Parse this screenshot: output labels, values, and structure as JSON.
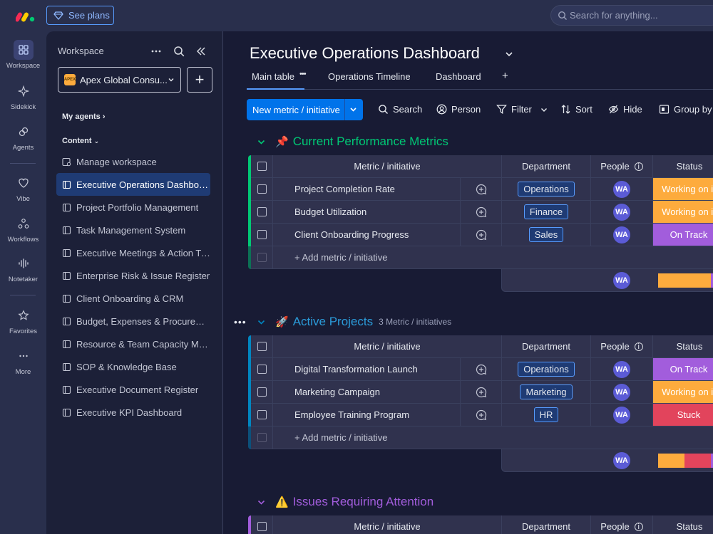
{
  "topbar": {
    "see_plans": "See plans",
    "search_placeholder": "Search for anything..."
  },
  "rail": [
    {
      "label": "Workspace",
      "icon": "workspace-grid-icon"
    },
    {
      "label": "Sidekick",
      "icon": "sidekick-icon"
    },
    {
      "label": "Agents",
      "icon": "agents-icon"
    },
    {
      "label": "Vibe",
      "icon": "vibe-heart-icon"
    },
    {
      "label": "Workflows",
      "icon": "workflows-icon"
    },
    {
      "label": "Notetaker",
      "icon": "notetaker-waveform-icon"
    },
    {
      "label": "Favorites",
      "icon": "star-icon"
    },
    {
      "label": "More",
      "icon": "more-dots-icon"
    }
  ],
  "sidebar": {
    "title": "Workspace",
    "workspace_name": "Apex Global Consu...",
    "workspace_badge": "APEX",
    "my_agents": "My agents",
    "content": "Content",
    "items": [
      {
        "label": "Manage workspace"
      },
      {
        "label": "Executive Operations Dashboard"
      },
      {
        "label": "Project Portfolio Management"
      },
      {
        "label": "Task Management System"
      },
      {
        "label": "Executive Meetings & Action Tr..."
      },
      {
        "label": "Enterprise Risk & Issue Register"
      },
      {
        "label": "Client Onboarding & CRM"
      },
      {
        "label": "Budget, Expenses & Procureme..."
      },
      {
        "label": "Resource & Team Capacity Man..."
      },
      {
        "label": "SOP & Knowledge Base"
      },
      {
        "label": "Executive Document Register"
      },
      {
        "label": "Executive KPI Dashboard"
      }
    ]
  },
  "main": {
    "title": "Executive Operations Dashboard",
    "tabs": [
      "Main table",
      "Operations Timeline",
      "Dashboard",
      "+"
    ],
    "tab_more": "•••",
    "toolbar": {
      "new_item": "New metric / initiative",
      "search": "Search",
      "person": "Person",
      "filter": "Filter",
      "sort": "Sort",
      "hide": "Hide",
      "group_by": "Group by"
    },
    "columns": {
      "item": "Metric / initiative",
      "department": "Department",
      "people": "People",
      "status": "Status"
    },
    "add_item": "+ Add metric / initiative",
    "group_dots": "•••",
    "groups": [
      {
        "name": "Current Performance Metrics",
        "emoji": "📌",
        "color": "#00c875",
        "count": "",
        "rows": [
          {
            "name": "Project Completion Rate",
            "dept": "Operations",
            "person": "WA",
            "status": "Working on it",
            "status_color": "#fdab3d"
          },
          {
            "name": "Budget Utilization",
            "dept": "Finance",
            "person": "WA",
            "status": "Working on it",
            "status_color": "#fdab3d"
          },
          {
            "name": "Client Onboarding Progress",
            "dept": "Sales",
            "person": "WA",
            "status": "On Track",
            "status_color": "#a25ddc"
          }
        ],
        "summary_person": "WA"
      },
      {
        "name": "Active Projects",
        "emoji": "🚀",
        "color": "#0086c0",
        "count": "3 Metric / initiatives",
        "rows": [
          {
            "name": "Digital Transformation Launch",
            "dept": "Operations",
            "person": "WA",
            "status": "On Track",
            "status_color": "#a25ddc"
          },
          {
            "name": "Marketing Campaign",
            "dept": "Marketing",
            "person": "WA",
            "status": "Working on it",
            "status_color": "#fdab3d"
          },
          {
            "name": "Employee Training Program",
            "dept": "HR",
            "person": "WA",
            "status": "Stuck",
            "status_color": "#e2445c"
          }
        ],
        "summary_person": "WA"
      },
      {
        "name": "Issues Requiring Attention",
        "emoji": "⚠️",
        "color": "#a25ddc",
        "count": ""
      }
    ]
  }
}
